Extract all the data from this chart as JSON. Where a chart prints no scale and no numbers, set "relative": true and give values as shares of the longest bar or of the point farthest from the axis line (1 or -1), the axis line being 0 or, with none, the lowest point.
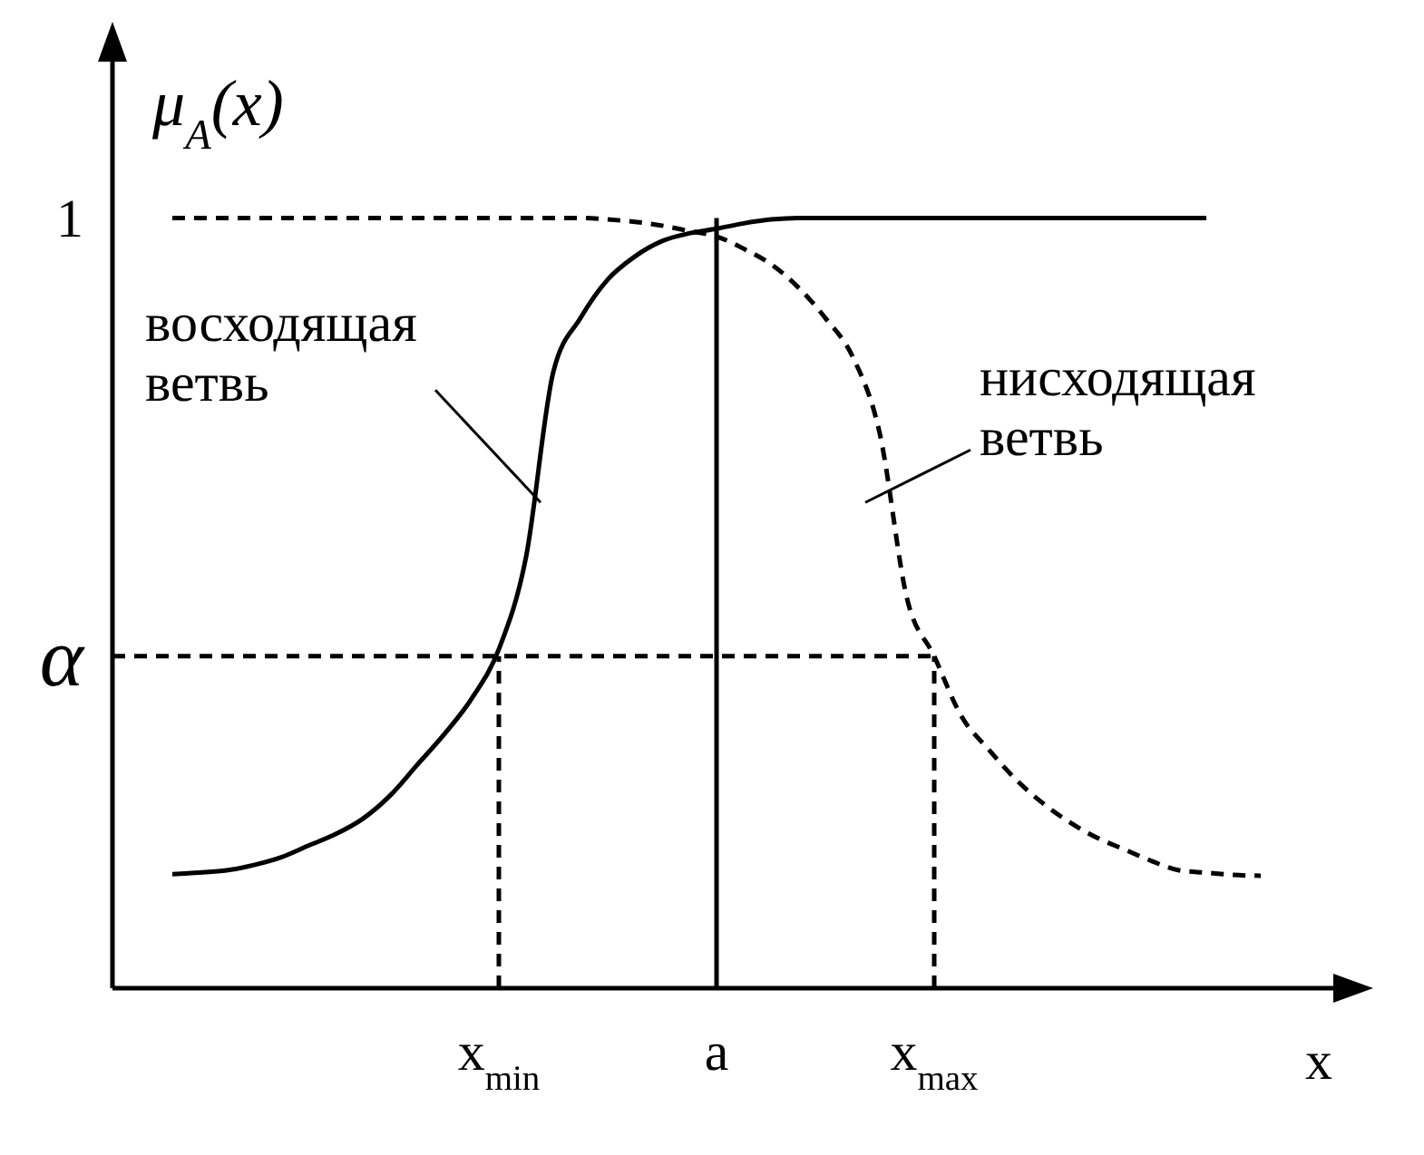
{
  "chart_data": {
    "type": "line",
    "relative": true,
    "xlabel": "x",
    "ylabel": "μ$_{A}$(x)",
    "categories": [
      null,
      null,
      null,
      null,
      null,
      null,
      null,
      null,
      null,
      null,
      null,
      null,
      "x$_{min}$",
      null,
      null,
      null,
      null,
      null,
      null,
      null,
      "a",
      null,
      null,
      null,
      null,
      null,
      null,
      null,
      "x$_{max}$",
      null,
      null,
      null,
      null,
      null,
      null,
      null,
      null,
      null,
      null,
      null,
      null
    ],
    "series": [
      {
        "color": "#000000",
        "line_style": "solid",
        "values": [
          0.148,
          0.15,
          0.153,
          0.16,
          0.17,
          0.185,
          0.2,
          0.22,
          0.25,
          0.29,
          0.33,
          0.376,
          0.44,
          0.56,
          0.8,
          0.87,
          0.92,
          0.95,
          0.97,
          0.98,
          0.986,
          0.993,
          0.998,
          1,
          1,
          1,
          1,
          1,
          1,
          1,
          1,
          1,
          1,
          1,
          1,
          1,
          1,
          1,
          1,
          null,
          null
        ]
      },
      {
        "color": "#000000",
        "line_style": "dashed",
        "values": [
          1,
          1,
          1,
          1,
          1,
          1,
          1,
          1,
          1,
          1,
          1,
          1,
          1,
          1,
          1,
          1,
          0.998,
          0.995,
          0.99,
          0.983,
          0.976,
          0.96,
          0.94,
          0.91,
          0.87,
          0.82,
          0.72,
          0.506,
          0.431,
          0.353,
          0.31,
          0.271,
          0.24,
          0.215,
          0.195,
          0.18,
          0.165,
          0.153,
          0.15,
          0.147,
          0.146
        ]
      }
    ],
    "ref_lines": [
      {
        "axis": "y",
        "value": 0.431,
        "label": "α",
        "line_style": "dashed",
        "color": "#000000"
      },
      {
        "axis": "x",
        "value": "x$_{min}$",
        "line_style": "dashed",
        "color": "#000000"
      },
      {
        "axis": "x",
        "value": "a",
        "line_style": "solid",
        "color": "#000000"
      },
      {
        "axis": "x",
        "value": "x$_{max}$",
        "line_style": "dashed",
        "color": "#000000"
      }
    ],
    "annotations": [
      "1",
      "восходящая\nветвь",
      "нисходящая\nветвь"
    ]
  }
}
